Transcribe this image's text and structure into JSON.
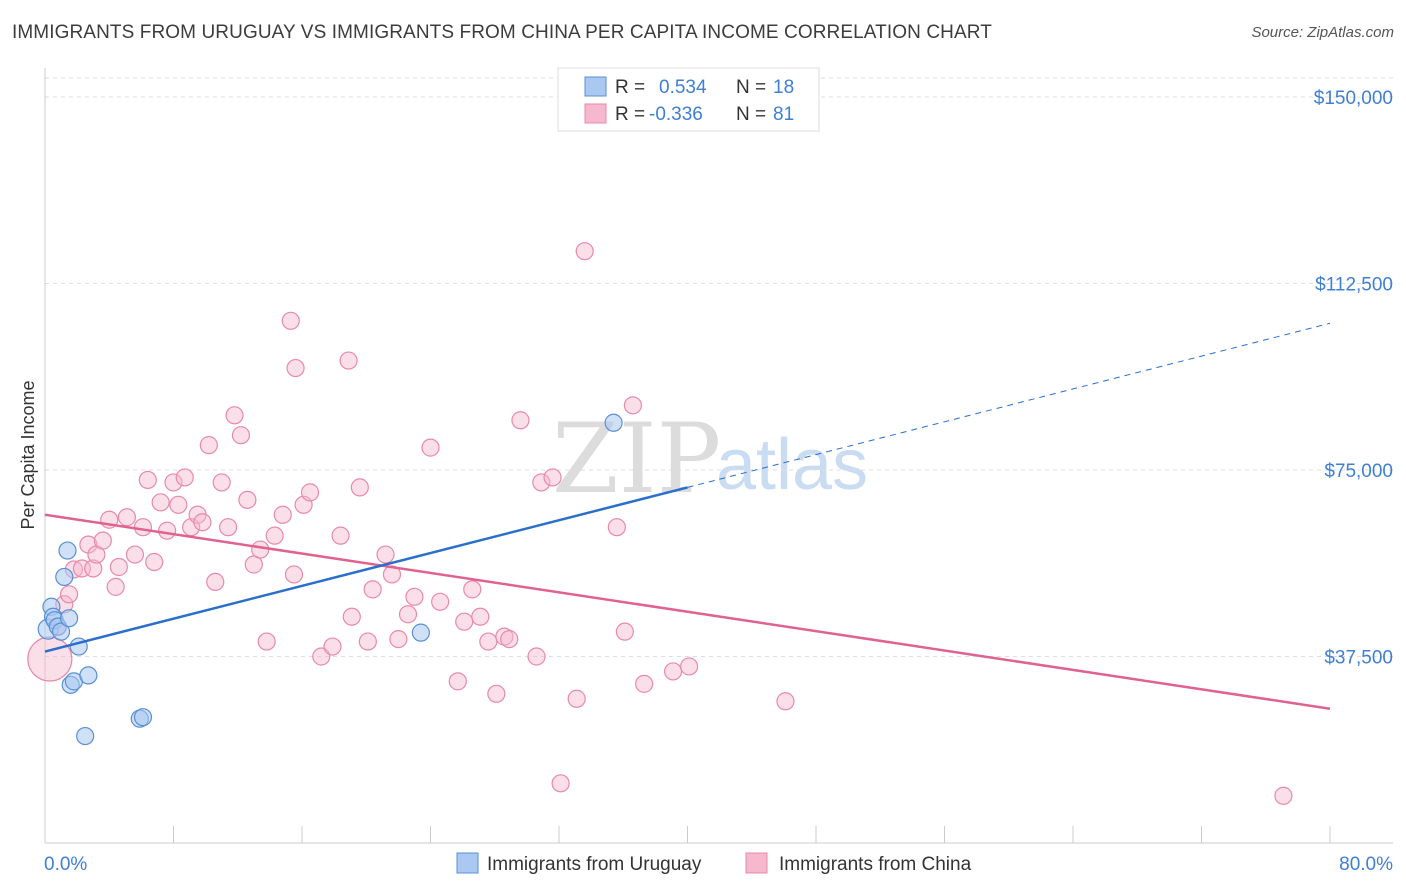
{
  "header": {
    "title": "IMMIGRANTS FROM URUGUAY VS IMMIGRANTS FROM CHINA PER CAPITA INCOME CORRELATION CHART",
    "source": "Source: ZipAtlas.com"
  },
  "watermark": {
    "zip": "ZIP",
    "atlas": "atlas"
  },
  "legend": {
    "r_label": "R =",
    "n_label": "N =",
    "uruguay": {
      "r": "0.534",
      "n": "18"
    },
    "china": {
      "r": "-0.336",
      "n": "81"
    }
  },
  "colors": {
    "uruguay_fill": "#aac8f0",
    "uruguay_stroke": "#5a8fd6",
    "uruguay_line": "#2a6fcc",
    "china_fill": "#f6b8cc",
    "china_stroke": "#e88aa8",
    "china_line": "#e0628e",
    "tick_text": "#3f7fd4",
    "grid": "#dddddd"
  },
  "chart_data": {
    "type": "scatter",
    "title": "IMMIGRANTS FROM URUGUAY VS IMMIGRANTS FROM CHINA PER CAPITA INCOME CORRELATION CHART",
    "xlabel": "",
    "ylabel": "Per Capita Income",
    "xlim": [
      0,
      80
    ],
    "ylim": [
      0,
      157000
    ],
    "x_tick_labels": [
      "0.0%",
      "80.0%"
    ],
    "y_ticks": [
      {
        "value": 37500,
        "label": "$37,500"
      },
      {
        "value": 75000,
        "label": "$75,000"
      },
      {
        "value": 112500,
        "label": "$112,500"
      },
      {
        "value": 150000,
        "label": "$150,000"
      }
    ],
    "series": [
      {
        "name": "Immigrants from Uruguay",
        "r": 0.534,
        "n": 18,
        "trend": {
          "x0": 0,
          "y0": 38500,
          "x1": 40,
          "y1": 71500,
          "dashed_to_x": 80,
          "dashed_to_y": 104500
        },
        "points": [
          [
            0.2,
            43000
          ],
          [
            0.4,
            47500
          ],
          [
            0.5,
            45500
          ],
          [
            0.6,
            44800
          ],
          [
            0.8,
            43500
          ],
          [
            1.0,
            42500
          ],
          [
            1.2,
            53500
          ],
          [
            1.4,
            58800
          ],
          [
            1.5,
            45200
          ],
          [
            1.6,
            31800
          ],
          [
            1.8,
            32500
          ],
          [
            2.1,
            39500
          ],
          [
            2.5,
            21500
          ],
          [
            2.7,
            33700
          ],
          [
            5.9,
            25000
          ],
          [
            6.1,
            25300
          ],
          [
            23.4,
            42300
          ],
          [
            35.4,
            84500
          ]
        ]
      },
      {
        "name": "Immigrants from China",
        "r": -0.336,
        "n": 81,
        "trend": {
          "x0": 0,
          "y0": 66000,
          "x1": 80,
          "y1": 27000
        },
        "points": [
          [
            0.3,
            37000
          ],
          [
            0.8,
            43500
          ],
          [
            1.2,
            48000
          ],
          [
            1.5,
            50000
          ],
          [
            1.8,
            55000
          ],
          [
            2.3,
            55200
          ],
          [
            2.7,
            60000
          ],
          [
            3.0,
            55200
          ],
          [
            3.2,
            58000
          ],
          [
            3.6,
            60800
          ],
          [
            4.0,
            65000
          ],
          [
            4.4,
            51500
          ],
          [
            4.6,
            55500
          ],
          [
            5.1,
            65500
          ],
          [
            5.6,
            58000
          ],
          [
            6.1,
            63500
          ],
          [
            6.4,
            73000
          ],
          [
            6.8,
            56500
          ],
          [
            7.2,
            68500
          ],
          [
            7.6,
            62800
          ],
          [
            8.0,
            72500
          ],
          [
            8.3,
            68000
          ],
          [
            8.7,
            73500
          ],
          [
            9.1,
            63500
          ],
          [
            9.5,
            66000
          ],
          [
            9.8,
            64500
          ],
          [
            10.2,
            80000
          ],
          [
            10.6,
            52500
          ],
          [
            11.0,
            72500
          ],
          [
            11.4,
            63500
          ],
          [
            11.8,
            86000
          ],
          [
            12.2,
            82000
          ],
          [
            12.6,
            69000
          ],
          [
            13.0,
            56000
          ],
          [
            13.4,
            59000
          ],
          [
            13.8,
            40500
          ],
          [
            14.3,
            61800
          ],
          [
            14.8,
            66000
          ],
          [
            15.3,
            105000
          ],
          [
            15.5,
            54000
          ],
          [
            15.6,
            95500
          ],
          [
            16.1,
            68000
          ],
          [
            16.5,
            70500
          ],
          [
            17.2,
            37500
          ],
          [
            17.9,
            39500
          ],
          [
            18.4,
            61800
          ],
          [
            18.9,
            97000
          ],
          [
            19.1,
            45500
          ],
          [
            19.6,
            71500
          ],
          [
            20.1,
            40500
          ],
          [
            20.4,
            51000
          ],
          [
            21.2,
            58000
          ],
          [
            21.6,
            54000
          ],
          [
            22.0,
            41000
          ],
          [
            22.6,
            46000
          ],
          [
            23.0,
            49500
          ],
          [
            24.0,
            79500
          ],
          [
            24.6,
            48500
          ],
          [
            25.7,
            32500
          ],
          [
            26.1,
            44500
          ],
          [
            26.6,
            51000
          ],
          [
            27.1,
            45500
          ],
          [
            27.6,
            40500
          ],
          [
            28.1,
            30000
          ],
          [
            28.6,
            41500
          ],
          [
            28.9,
            41000
          ],
          [
            29.6,
            85000
          ],
          [
            30.6,
            37500
          ],
          [
            30.9,
            72500
          ],
          [
            31.6,
            73500
          ],
          [
            32.1,
            12000
          ],
          [
            33.1,
            29000
          ],
          [
            33.6,
            119000
          ],
          [
            35.6,
            63500
          ],
          [
            36.1,
            42500
          ],
          [
            36.6,
            88000
          ],
          [
            37.3,
            32000
          ],
          [
            39.1,
            34500
          ],
          [
            40.1,
            35500
          ],
          [
            46.1,
            28500
          ],
          [
            77.1,
            9500
          ]
        ]
      }
    ],
    "legend_labels": [
      "Immigrants from Uruguay",
      "Immigrants from China"
    ]
  }
}
